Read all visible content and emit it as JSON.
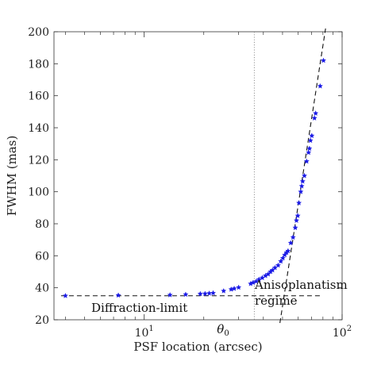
{
  "chart_data": {
    "type": "scatter",
    "xscale": "log",
    "xlim": [
      3.5,
      100
    ],
    "ylim": [
      20,
      200
    ],
    "xlabel": "PSF location (arcsec)",
    "ylabel": "FWHM (mas)",
    "yticks": [
      20,
      40,
      60,
      80,
      100,
      120,
      140,
      160,
      180,
      200
    ],
    "xticks": [
      {
        "base": "10",
        "exp": "1",
        "value": 10
      },
      {
        "base": "10",
        "exp": "2",
        "value": 100
      }
    ],
    "x_minor_ticks": [
      4,
      5,
      6,
      7,
      8,
      9,
      20,
      30,
      40,
      50,
      60,
      70,
      80,
      90
    ],
    "grid": false,
    "marker_color": "#1a1ae6",
    "series": [
      {
        "points": [
          [
            4.0,
            35.0
          ],
          [
            7.4,
            35.3
          ],
          [
            13.5,
            35.5
          ],
          [
            16.2,
            35.8
          ],
          [
            19.2,
            36.2
          ],
          [
            20.3,
            36.3
          ],
          [
            21.3,
            36.5
          ],
          [
            22.3,
            36.7
          ],
          [
            25.2,
            38.0
          ],
          [
            27.5,
            39.0
          ],
          [
            28.5,
            39.5
          ],
          [
            30.0,
            40.2
          ],
          [
            34.5,
            42.5
          ],
          [
            35.5,
            43.2
          ],
          [
            36.8,
            44.0
          ],
          [
            38.0,
            45.2
          ],
          [
            39.5,
            46.2
          ],
          [
            41.0,
            47.5
          ],
          [
            42.3,
            48.5
          ],
          [
            43.5,
            50.0
          ],
          [
            44.5,
            51.0
          ],
          [
            45.8,
            52.5
          ],
          [
            47.5,
            54.0
          ],
          [
            49.0,
            56.5
          ],
          [
            50.2,
            58.5
          ],
          [
            51.3,
            60.5
          ],
          [
            52.4,
            62.0
          ],
          [
            53.3,
            63.0
          ],
          [
            55.0,
            68.0
          ],
          [
            56.5,
            71.5
          ],
          [
            58.0,
            77.5
          ],
          [
            58.8,
            82.0
          ],
          [
            59.7,
            85.0
          ],
          [
            60.5,
            93.0
          ],
          [
            61.8,
            100.0
          ],
          [
            62.5,
            103.5
          ],
          [
            63.2,
            106.5
          ],
          [
            64.5,
            110.0
          ],
          [
            66.2,
            119.0
          ],
          [
            67.7,
            124.5
          ],
          [
            68.4,
            127.0
          ],
          [
            69.2,
            132.0
          ],
          [
            70.3,
            135.0
          ],
          [
            72.5,
            146.0
          ],
          [
            73.5,
            149.0
          ],
          [
            77.5,
            166.0
          ],
          [
            80.5,
            182.0
          ]
        ]
      }
    ],
    "reference_lines": [
      {
        "kind": "horizontal-dashed",
        "y": 35,
        "x_range": [
          3.8,
          78
        ]
      },
      {
        "kind": "steep-dashed",
        "from": [
          48.5,
          18
        ],
        "to": [
          82.5,
          202
        ]
      },
      {
        "kind": "vertical-dotted",
        "x": 36
      }
    ],
    "annotations": {
      "theta": "θ",
      "theta_sub": "0",
      "diffraction": "Diffraction-limit",
      "aniso_line1": "Anisoplanatism",
      "aniso_line2": "regime"
    }
  }
}
